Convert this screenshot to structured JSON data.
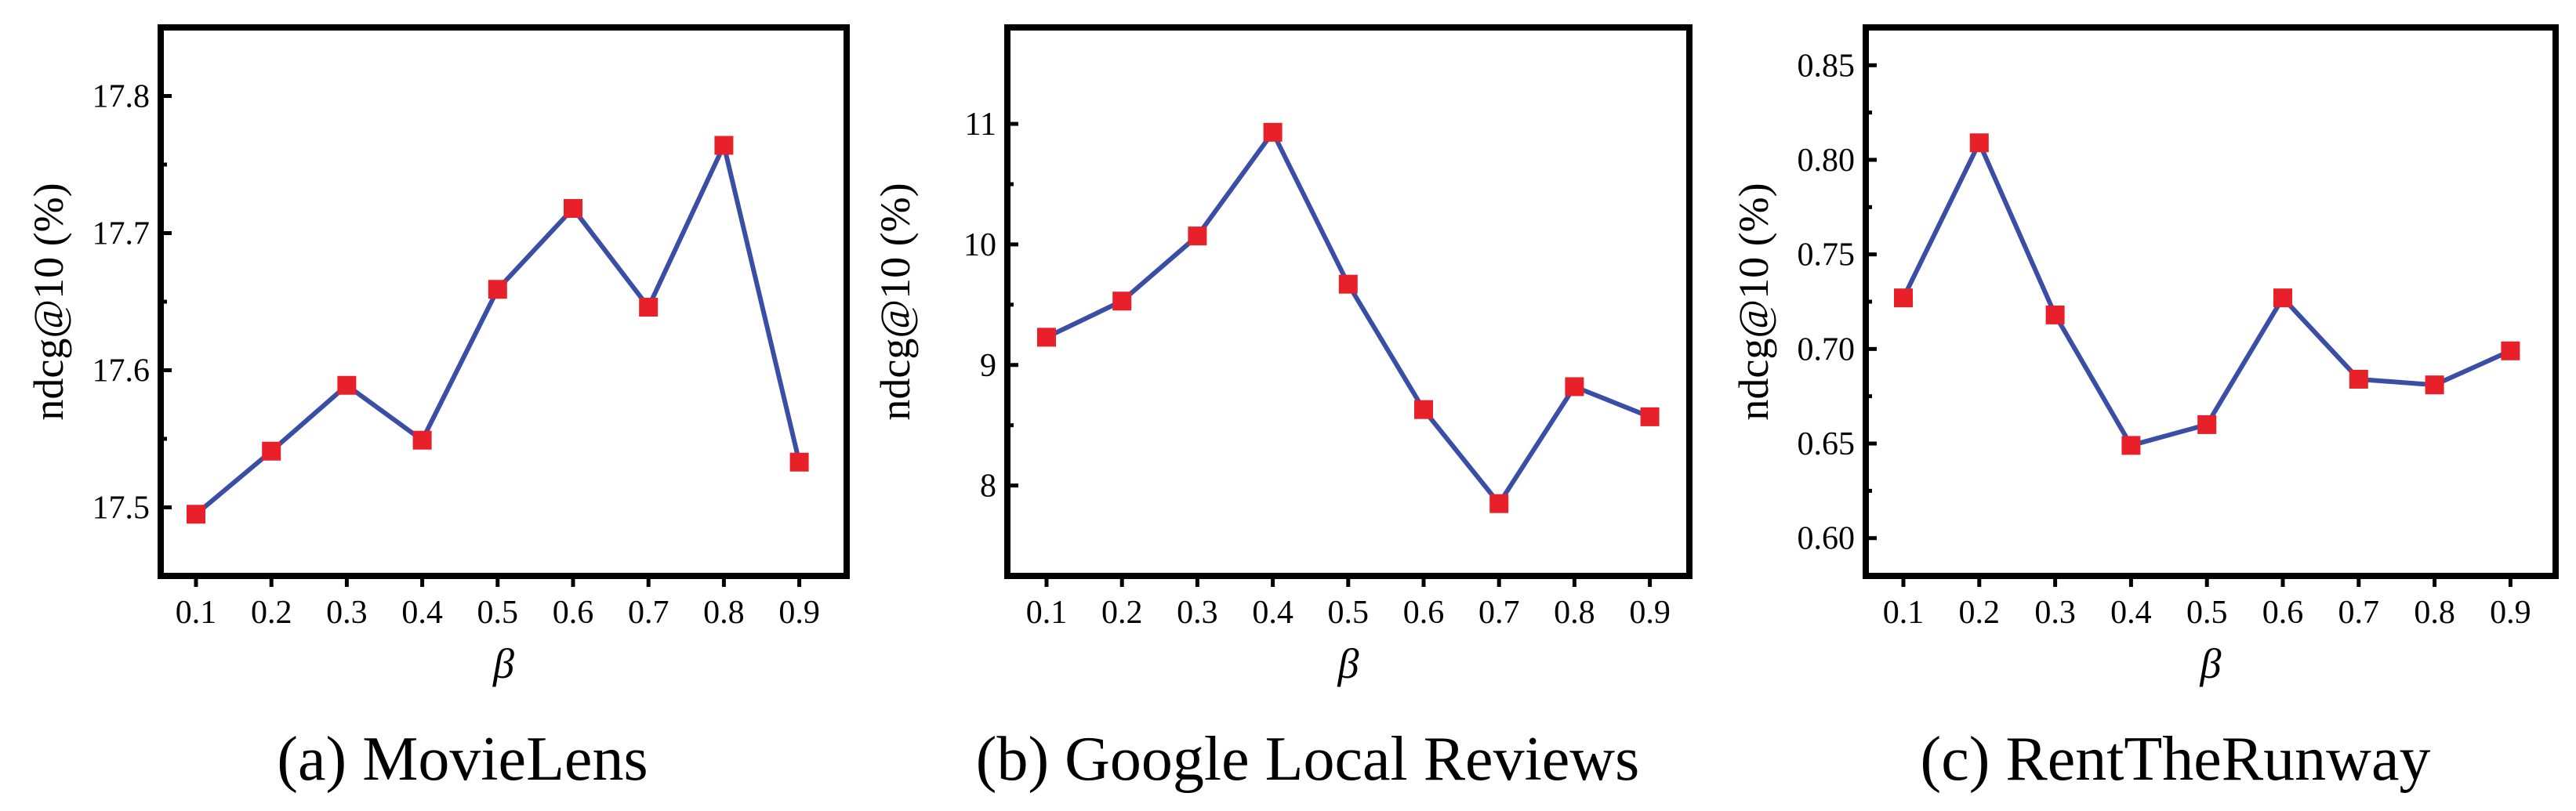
{
  "colors": {
    "line": "#3b4ea6",
    "marker": "#e8202a",
    "axes": "#000000"
  },
  "chart_data": [
    {
      "type": "line",
      "caption": "(a) MovieLens",
      "xlabel": "β",
      "ylabel": "ndcg@10 (%)",
      "x": [
        0.1,
        0.2,
        0.3,
        0.4,
        0.5,
        0.6,
        0.7,
        0.8,
        0.9
      ],
      "x_tick_labels": [
        "0.1",
        "0.2",
        "0.3",
        "0.4",
        "0.5",
        "0.6",
        "0.7",
        "0.8",
        "0.9"
      ],
      "y_ticks": [
        17.5,
        17.6,
        17.7,
        17.8
      ],
      "y_tick_labels": [
        "17.5",
        "17.6",
        "17.7",
        "17.8"
      ],
      "ylim": [
        17.45,
        17.85
      ],
      "series": [
        {
          "values": [
            17.495,
            17.541,
            17.589,
            17.549,
            17.659,
            17.718,
            17.646,
            17.764,
            17.533
          ]
        }
      ],
      "grid": false,
      "legend": "none"
    },
    {
      "type": "line",
      "caption": "(b) Google Local Reviews",
      "xlabel": "β",
      "ylabel": "ndcg@10 (%)",
      "x": [
        0.1,
        0.2,
        0.3,
        0.4,
        0.5,
        0.6,
        0.7,
        0.8,
        0.9
      ],
      "x_tick_labels": [
        "0.1",
        "0.2",
        "0.3",
        "0.4",
        "0.5",
        "0.6",
        "0.7",
        "0.8",
        "0.9"
      ],
      "y_ticks": [
        8,
        9,
        10,
        11
      ],
      "y_tick_labels": [
        "8",
        "9",
        "10",
        "11"
      ],
      "ylim": [
        7.25,
        11.8
      ],
      "series": [
        {
          "values": [
            9.23,
            9.53,
            10.07,
            10.93,
            9.67,
            8.63,
            7.85,
            8.82,
            8.57
          ]
        }
      ],
      "grid": false,
      "legend": "none"
    },
    {
      "type": "line",
      "caption": "(c) RentTheRunway",
      "xlabel": "β",
      "ylabel": "ndcg@10 (%)",
      "x": [
        0.1,
        0.2,
        0.3,
        0.4,
        0.5,
        0.6,
        0.7,
        0.8,
        0.9
      ],
      "x_tick_labels": [
        "0.1",
        "0.2",
        "0.3",
        "0.4",
        "0.5",
        "0.6",
        "0.7",
        "0.8",
        "0.9"
      ],
      "y_ticks": [
        0.6,
        0.65,
        0.7,
        0.75,
        0.8,
        0.85
      ],
      "y_tick_labels": [
        "0.60",
        "0.65",
        "0.70",
        "0.75",
        "0.80",
        "0.85"
      ],
      "ylim": [
        0.58,
        0.87
      ],
      "series": [
        {
          "values": [
            0.727,
            0.809,
            0.718,
            0.649,
            0.66,
            0.727,
            0.684,
            0.681,
            0.699
          ]
        }
      ],
      "grid": false,
      "legend": "none"
    }
  ]
}
